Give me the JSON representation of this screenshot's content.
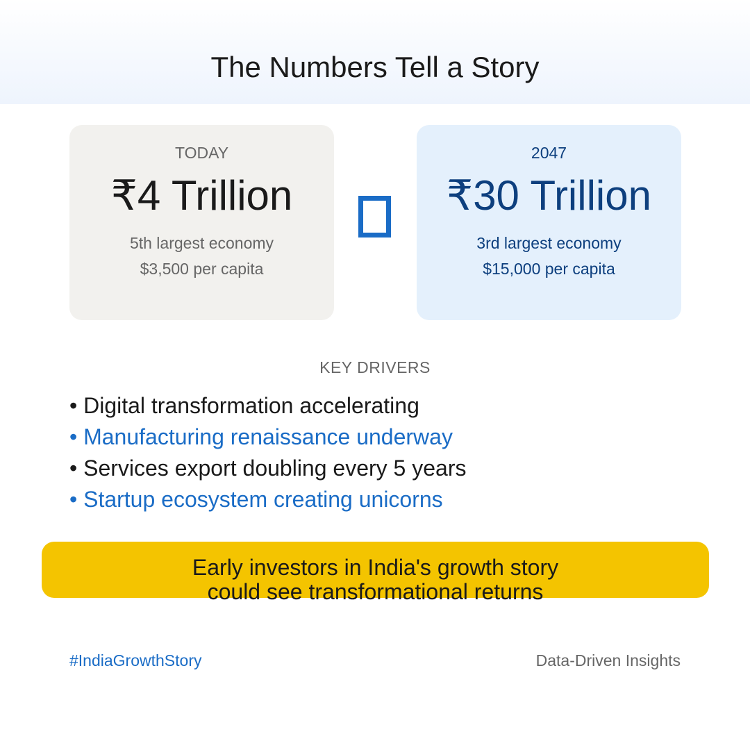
{
  "header": {
    "title": "The Numbers Tell a Story"
  },
  "today": {
    "label": "TODAY",
    "amount": "₹4 Trillion",
    "rank": "5th largest economy",
    "per_capita": "$3,500 per capita"
  },
  "future": {
    "label": "2047",
    "amount": "₹30 Trillion",
    "rank": "3rd largest economy",
    "per_capita": "$15,000 per capita"
  },
  "arrow_icon": "missing-glyph-box",
  "drivers": {
    "heading": "KEY DRIVERS",
    "items": [
      "• Digital transformation accelerating",
      "• Manufacturing renaissance underway",
      "• Services export doubling every 5 years",
      "• Startup ecosystem creating unicorns"
    ]
  },
  "callout": {
    "line1": "Early investors in India's growth story",
    "line2": "could see transformational returns"
  },
  "footer": {
    "hashtag": "#IndiaGrowthStory",
    "tagline": "Data-Driven Insights"
  },
  "colors": {
    "accent_blue": "#1a6cc6",
    "dark_blue": "#0d3f7e",
    "callout_yellow": "#f4c400",
    "today_card": "#f2f1ee",
    "future_card": "#e4f0fc"
  }
}
